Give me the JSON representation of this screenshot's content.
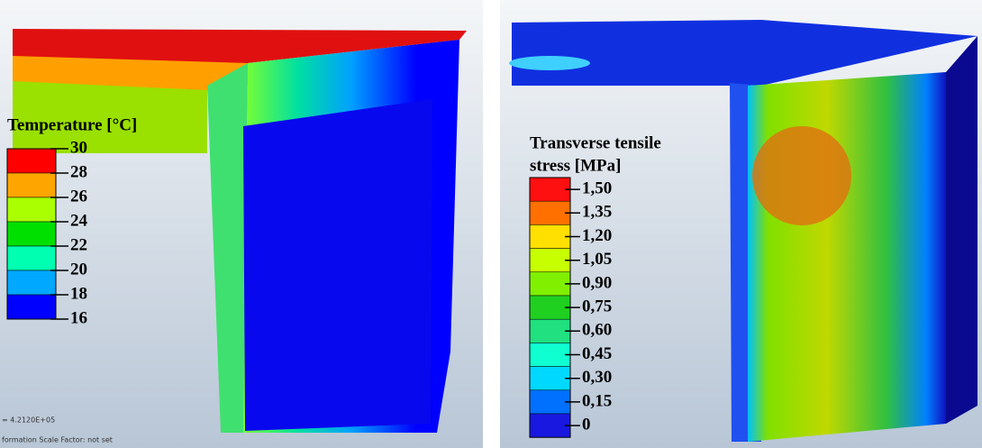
{
  "panels": [
    {
      "legend": {
        "title": [
          "Temperature [°C]"
        ],
        "labels": [
          "30",
          "28",
          "26",
          "24",
          "22",
          "20",
          "18",
          "16"
        ],
        "colors": [
          "#ff0000",
          "#ffa500",
          "#aaff00",
          "#00e000",
          "#00ffb0",
          "#00a8ff",
          "#0000ff"
        ]
      },
      "footer": [
        "=   4.2120E+05",
        "formation Scale Factor: not set"
      ]
    },
    {
      "legend": {
        "title": [
          "Transverse tensile",
          "stress [MPa]"
        ],
        "labels": [
          "1,50",
          "1,35",
          "1,20",
          "1,05",
          "0,90",
          "0,75",
          "0,60",
          "0,45",
          "0,30",
          "0,15",
          "0"
        ],
        "colors": [
          "#ff1010",
          "#ff7000",
          "#ffe000",
          "#c8ff00",
          "#80f000",
          "#20d020",
          "#20e080",
          "#10ffd0",
          "#00d8ff",
          "#0070ff",
          "#1818e0"
        ]
      },
      "footer": []
    }
  ]
}
